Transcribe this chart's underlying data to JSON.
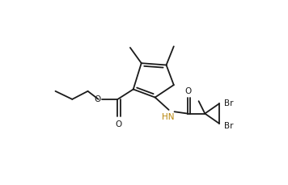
{
  "bg_color": "#ffffff",
  "line_color": "#1a1a1a",
  "HN_color": "#b8860b",
  "bond_lw": 1.3,
  "dbo": 0.022,
  "figw": 3.56,
  "figh": 2.3,
  "xlim": [
    0,
    3.56
  ],
  "ylim": [
    0,
    2.3
  ]
}
